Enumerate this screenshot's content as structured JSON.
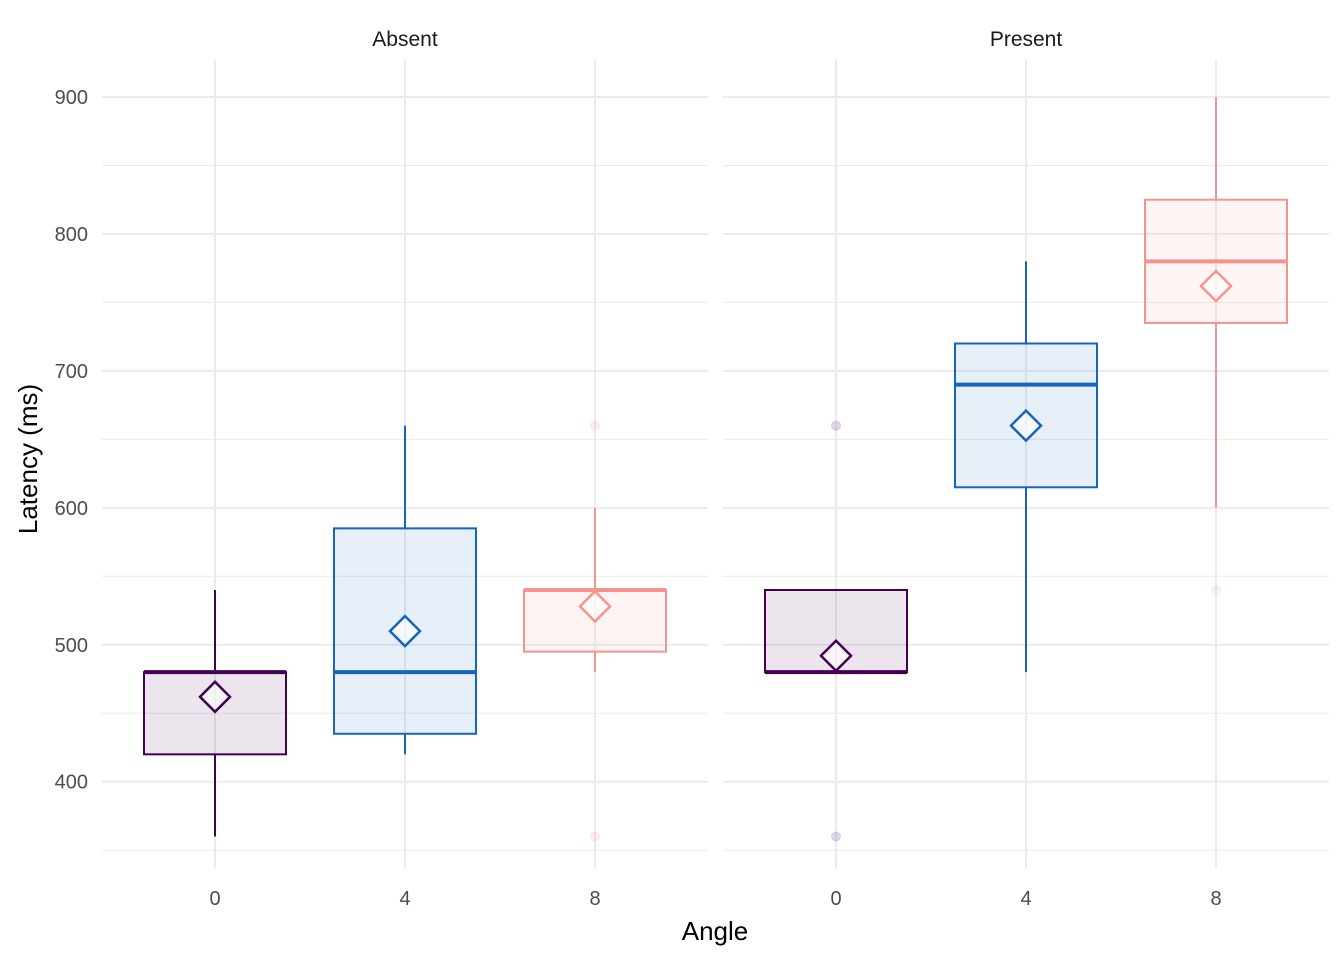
{
  "chart_data": {
    "type": "boxplot",
    "xlabel": "Angle",
    "ylabel": "Latency (ms)",
    "categories": [
      "0",
      "4",
      "8"
    ],
    "y_ticks": [
      400,
      500,
      600,
      700,
      800,
      900
    ],
    "ylim": [
      337,
      927
    ],
    "grid": true,
    "legend": "none",
    "colors": {
      "0": "#440154",
      "4": "#1565c0",
      "8": "#f4948f"
    },
    "panels": [
      {
        "facet": "Absent",
        "boxes": [
          {
            "angle": "0",
            "whisker_low": 360,
            "q1": 420,
            "median": 480,
            "q3": 480,
            "whisker_high": 540,
            "mean": 462,
            "outliers": []
          },
          {
            "angle": "4",
            "whisker_low": 420,
            "q1": 435,
            "median": 480,
            "q3": 585,
            "whisker_high": 660,
            "mean": 510,
            "outliers": []
          },
          {
            "angle": "8",
            "whisker_low": 480,
            "q1": 495,
            "median": 540,
            "q3": 540,
            "whisker_high": 600,
            "mean": 528,
            "outliers": [
              360,
              660
            ]
          }
        ]
      },
      {
        "facet": "Present",
        "boxes": [
          {
            "angle": "0",
            "whisker_low": 480,
            "q1": 480,
            "median": 480,
            "q3": 540,
            "whisker_high": 540,
            "mean": 492,
            "outliers": [
              360,
              660
            ]
          },
          {
            "angle": "4",
            "whisker_low": 480,
            "q1": 615,
            "median": 690,
            "q3": 720,
            "whisker_high": 780,
            "mean": 660,
            "outliers": []
          },
          {
            "angle": "8",
            "whisker_low": 600,
            "q1": 735,
            "median": 780,
            "q3": 825,
            "whisker_high": 900,
            "mean": 762,
            "outliers": [
              540
            ]
          }
        ]
      }
    ]
  }
}
